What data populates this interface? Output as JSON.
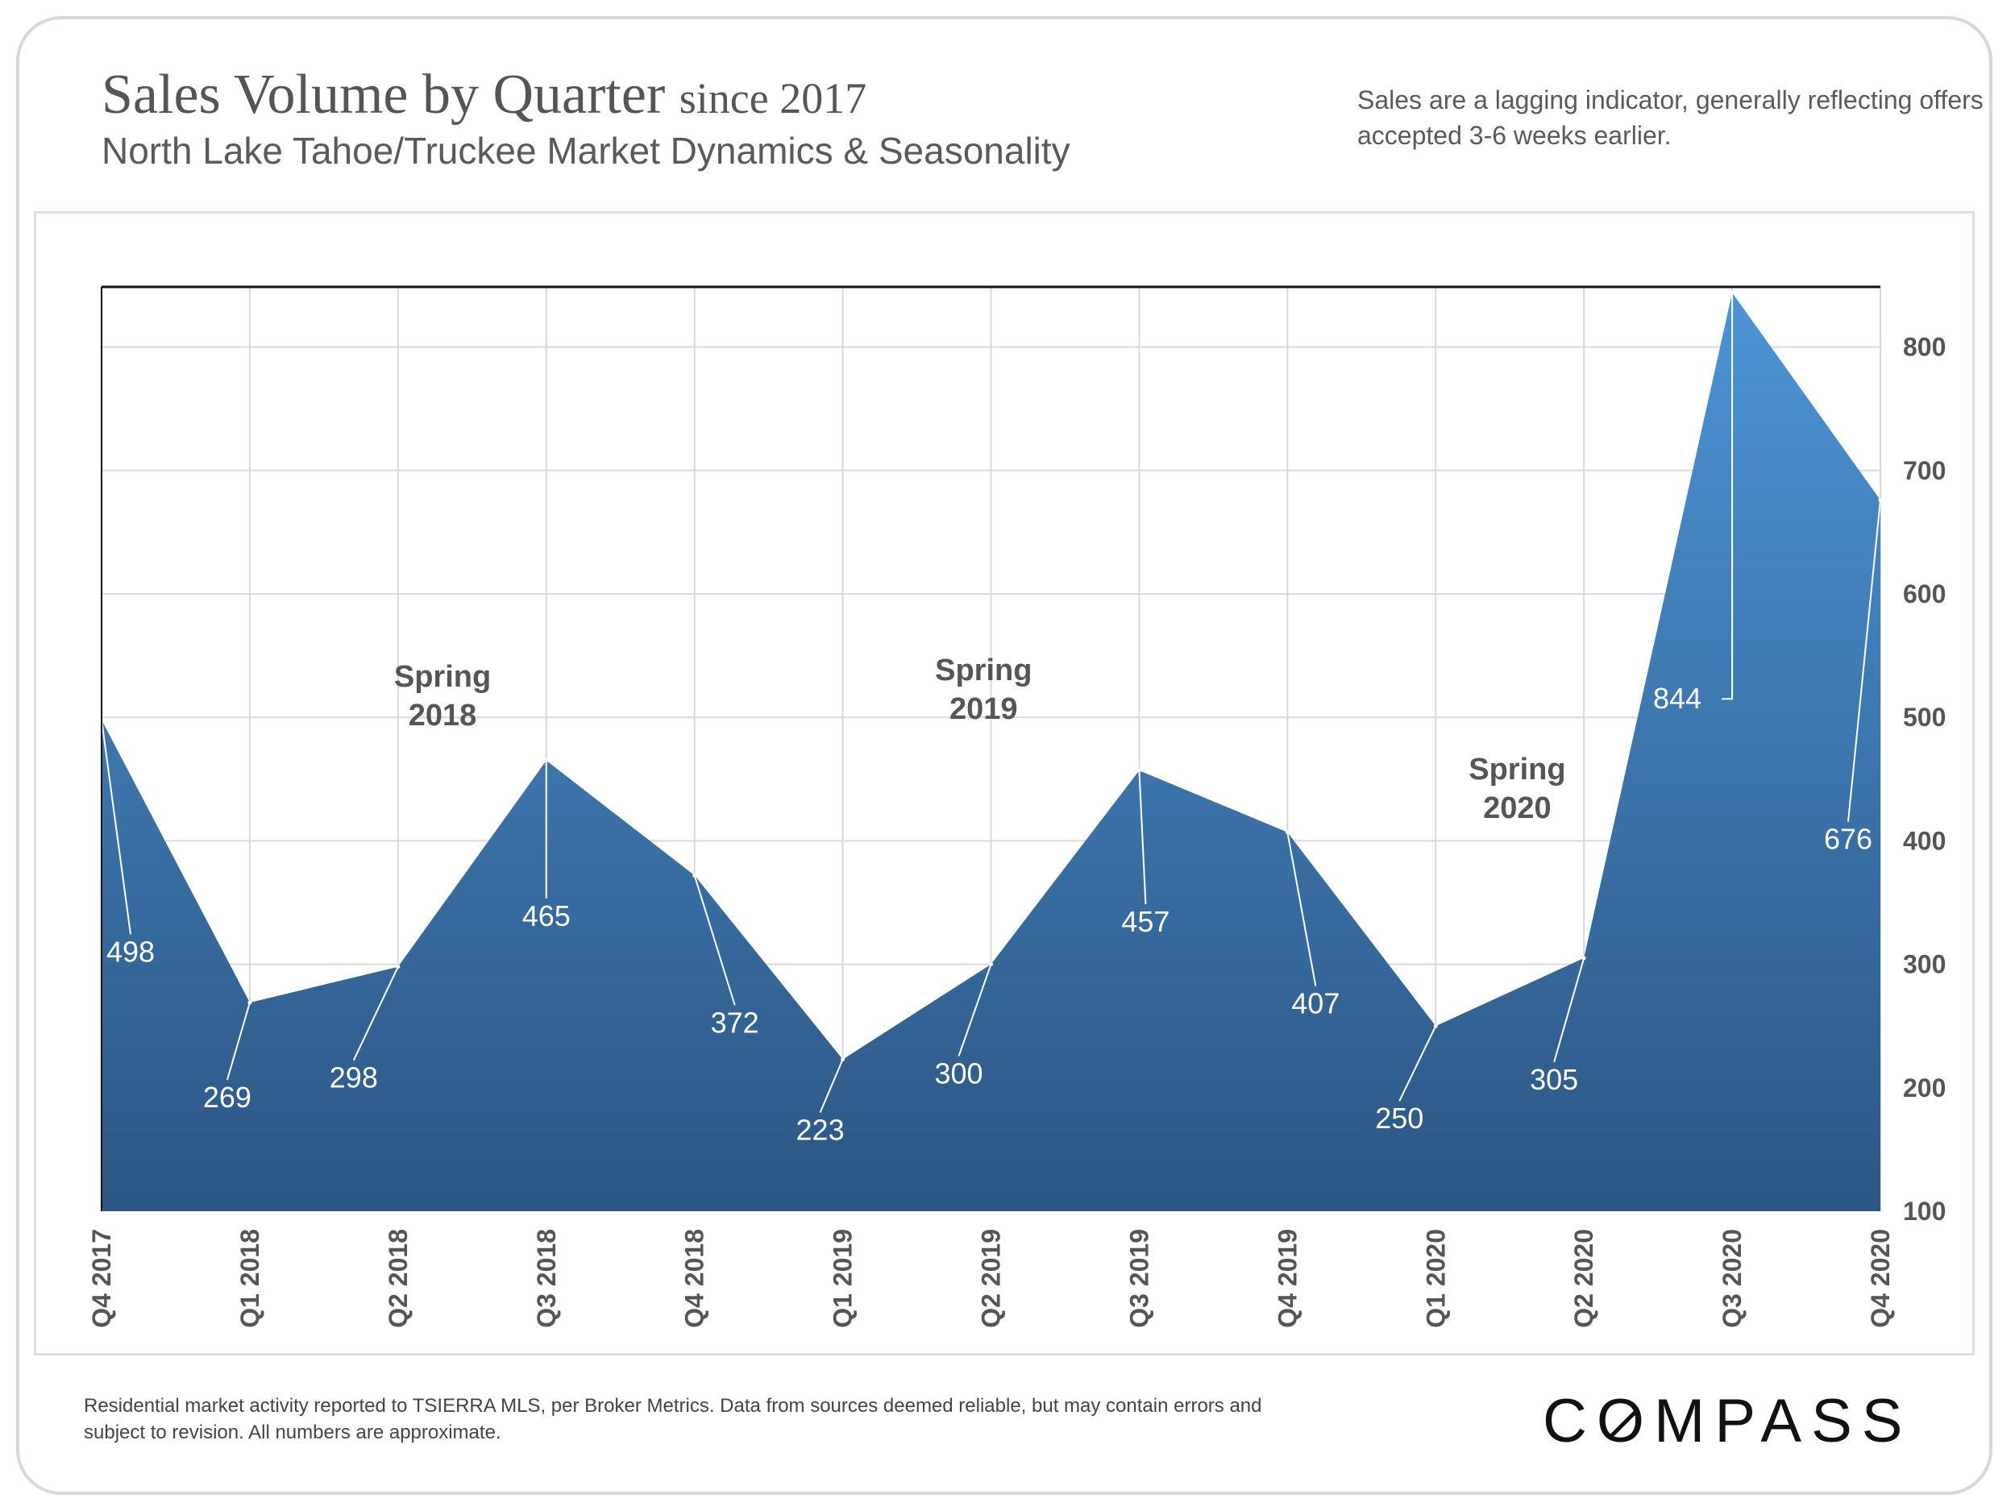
{
  "header": {
    "title_main": "Sales Volume by Quarter",
    "title_suffix": "since 2017",
    "subtitle": "North Lake Tahoe/Truckee Market Dynamics & Seasonality",
    "note": "Sales are a lagging indicator, generally reflecting offers accepted 3-6 weeks earlier."
  },
  "footer": {
    "footnote": "Residential market activity reported to TSIERRA MLS, per Broker Metrics. Data from sources deemed reliable, but may contain errors and subject to revision. All numbers are approximate.",
    "logo_pre": "C",
    "logo_o": "O",
    "logo_post": "MPASS"
  },
  "colors": {
    "area_top": "#4d94d6",
    "area_bottom": "#2c5683",
    "grid": "#d9d9d9"
  },
  "chart_data": {
    "type": "area",
    "categories": [
      "Q4 2017",
      "Q1 2018",
      "Q2 2018",
      "Q3 2018",
      "Q4 2018",
      "Q1 2019",
      "Q2 2019",
      "Q3 2019",
      "Q4 2019",
      "Q1 2020",
      "Q2 2020",
      "Q3 2020",
      "Q4 2020"
    ],
    "values": [
      498,
      269,
      298,
      465,
      372,
      223,
      300,
      457,
      407,
      250,
      305,
      844,
      676
    ],
    "ylim": [
      100,
      850
    ],
    "yticks": [
      100,
      200,
      300,
      400,
      500,
      600,
      700,
      800
    ],
    "y_axis_side": "right",
    "grid": true,
    "annotations": [
      {
        "lines": [
          "Spring",
          "2018"
        ],
        "x": 2.3,
        "y": 525
      },
      {
        "lines": [
          "Spring",
          "2019"
        ],
        "x": 5.95,
        "y": 530
      },
      {
        "lines": [
          "Spring",
          "2020"
        ],
        "x": 9.55,
        "y": 450
      }
    ]
  }
}
